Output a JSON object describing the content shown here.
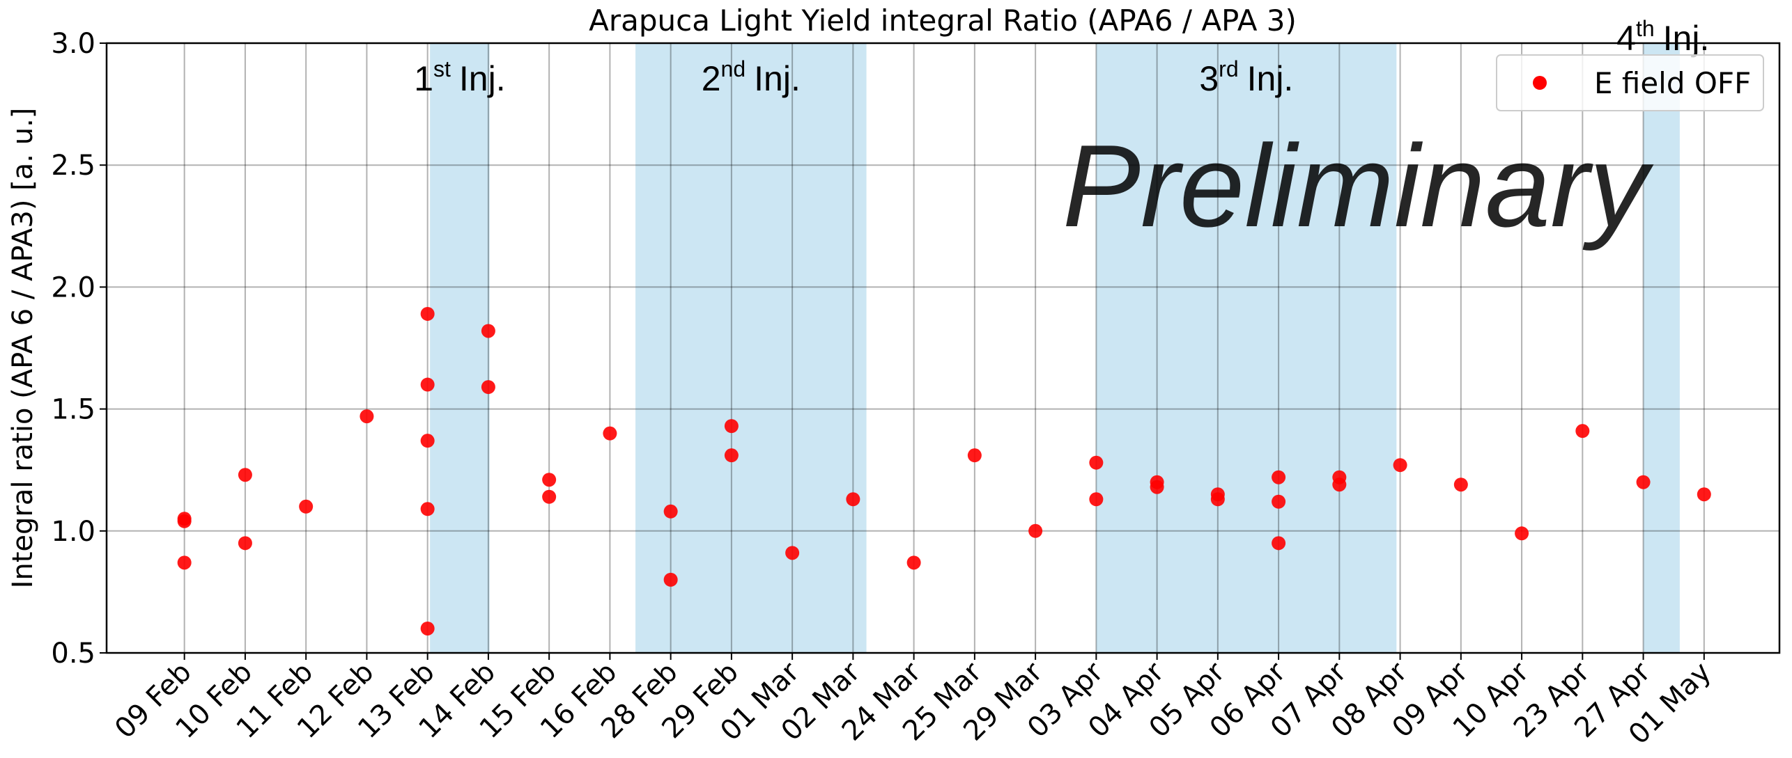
{
  "chart_data": {
    "type": "scatter",
    "title": "Arapuca Light Yield integral Ratio (APA6 / APA 3)",
    "y_label": "Integral ratio (APA 6 / APA3) [a. u.]",
    "categories": [
      "09 Feb",
      "10 Feb",
      "11 Feb",
      "12 Feb",
      "13 Feb",
      "14 Feb",
      "15 Feb",
      "16 Feb",
      "28 Feb",
      "29 Feb",
      "01 Mar",
      "02 Mar",
      "24 Mar",
      "25 Mar",
      "29 Mar",
      "03 Apr",
      "04 Apr",
      "05 Apr",
      "06 Apr",
      "07 Apr",
      "08 Apr",
      "09 Apr",
      "10 Apr",
      "23 Apr",
      "27 Apr",
      "01 May"
    ],
    "series": [
      {
        "name": "E field OFF",
        "color": "#ff0000",
        "values": [
          [
            1.05,
            1.04,
            0.87
          ],
          [
            1.23,
            0.95
          ],
          [
            1.1
          ],
          [
            1.47
          ],
          [
            1.89,
            1.6,
            1.37,
            1.09,
            0.6
          ],
          [
            1.82,
            1.59
          ],
          [
            1.21,
            1.14
          ],
          [
            1.4
          ],
          [
            1.08,
            0.8
          ],
          [
            1.43,
            1.31
          ],
          [
            0.91
          ],
          [
            1.13
          ],
          [
            0.87
          ],
          [
            1.31
          ],
          [
            1.0
          ],
          [
            1.28,
            1.13
          ],
          [
            1.2,
            1.18
          ],
          [
            1.15,
            1.13
          ],
          [
            1.22,
            1.12,
            0.95
          ],
          [
            1.22,
            1.19
          ],
          [
            1.27
          ],
          [
            1.19
          ],
          [
            0.99
          ],
          [
            1.41
          ],
          [
            1.2
          ],
          [
            1.15
          ]
        ]
      }
    ],
    "spans": [
      {
        "num": "1",
        "sup": "st",
        "rest": "Inj.",
        "start": 4.04,
        "end": 5.02,
        "color": "#cce6f3"
      },
      {
        "num": "2",
        "sup": "nd",
        "rest": "Inj.",
        "start": 7.42,
        "end": 11.22,
        "color": "#cce6f3"
      },
      {
        "num": "3",
        "sup": "rd",
        "rest": "Inj.",
        "start": 15.0,
        "end": 19.94,
        "color": "#cce6f3"
      },
      {
        "num": "4",
        "sup": "th",
        "rest": "Inj.",
        "start": 24.0,
        "end": 24.6,
        "color": "#cce6f3"
      }
    ],
    "annotation": "Preliminary",
    "xlim": [
      -1.28,
      26.24
    ],
    "ylim": [
      0.5,
      3.0
    ],
    "yticks": [
      0.5,
      {
        "value": 1.0,
        "label": "1.0"
      },
      1.5,
      {
        "value": 2.0,
        "label": "2.0"
      },
      2.5,
      {
        "value": 3.0,
        "label": "3.0"
      }
    ],
    "grid": true,
    "legend": "upper right"
  }
}
